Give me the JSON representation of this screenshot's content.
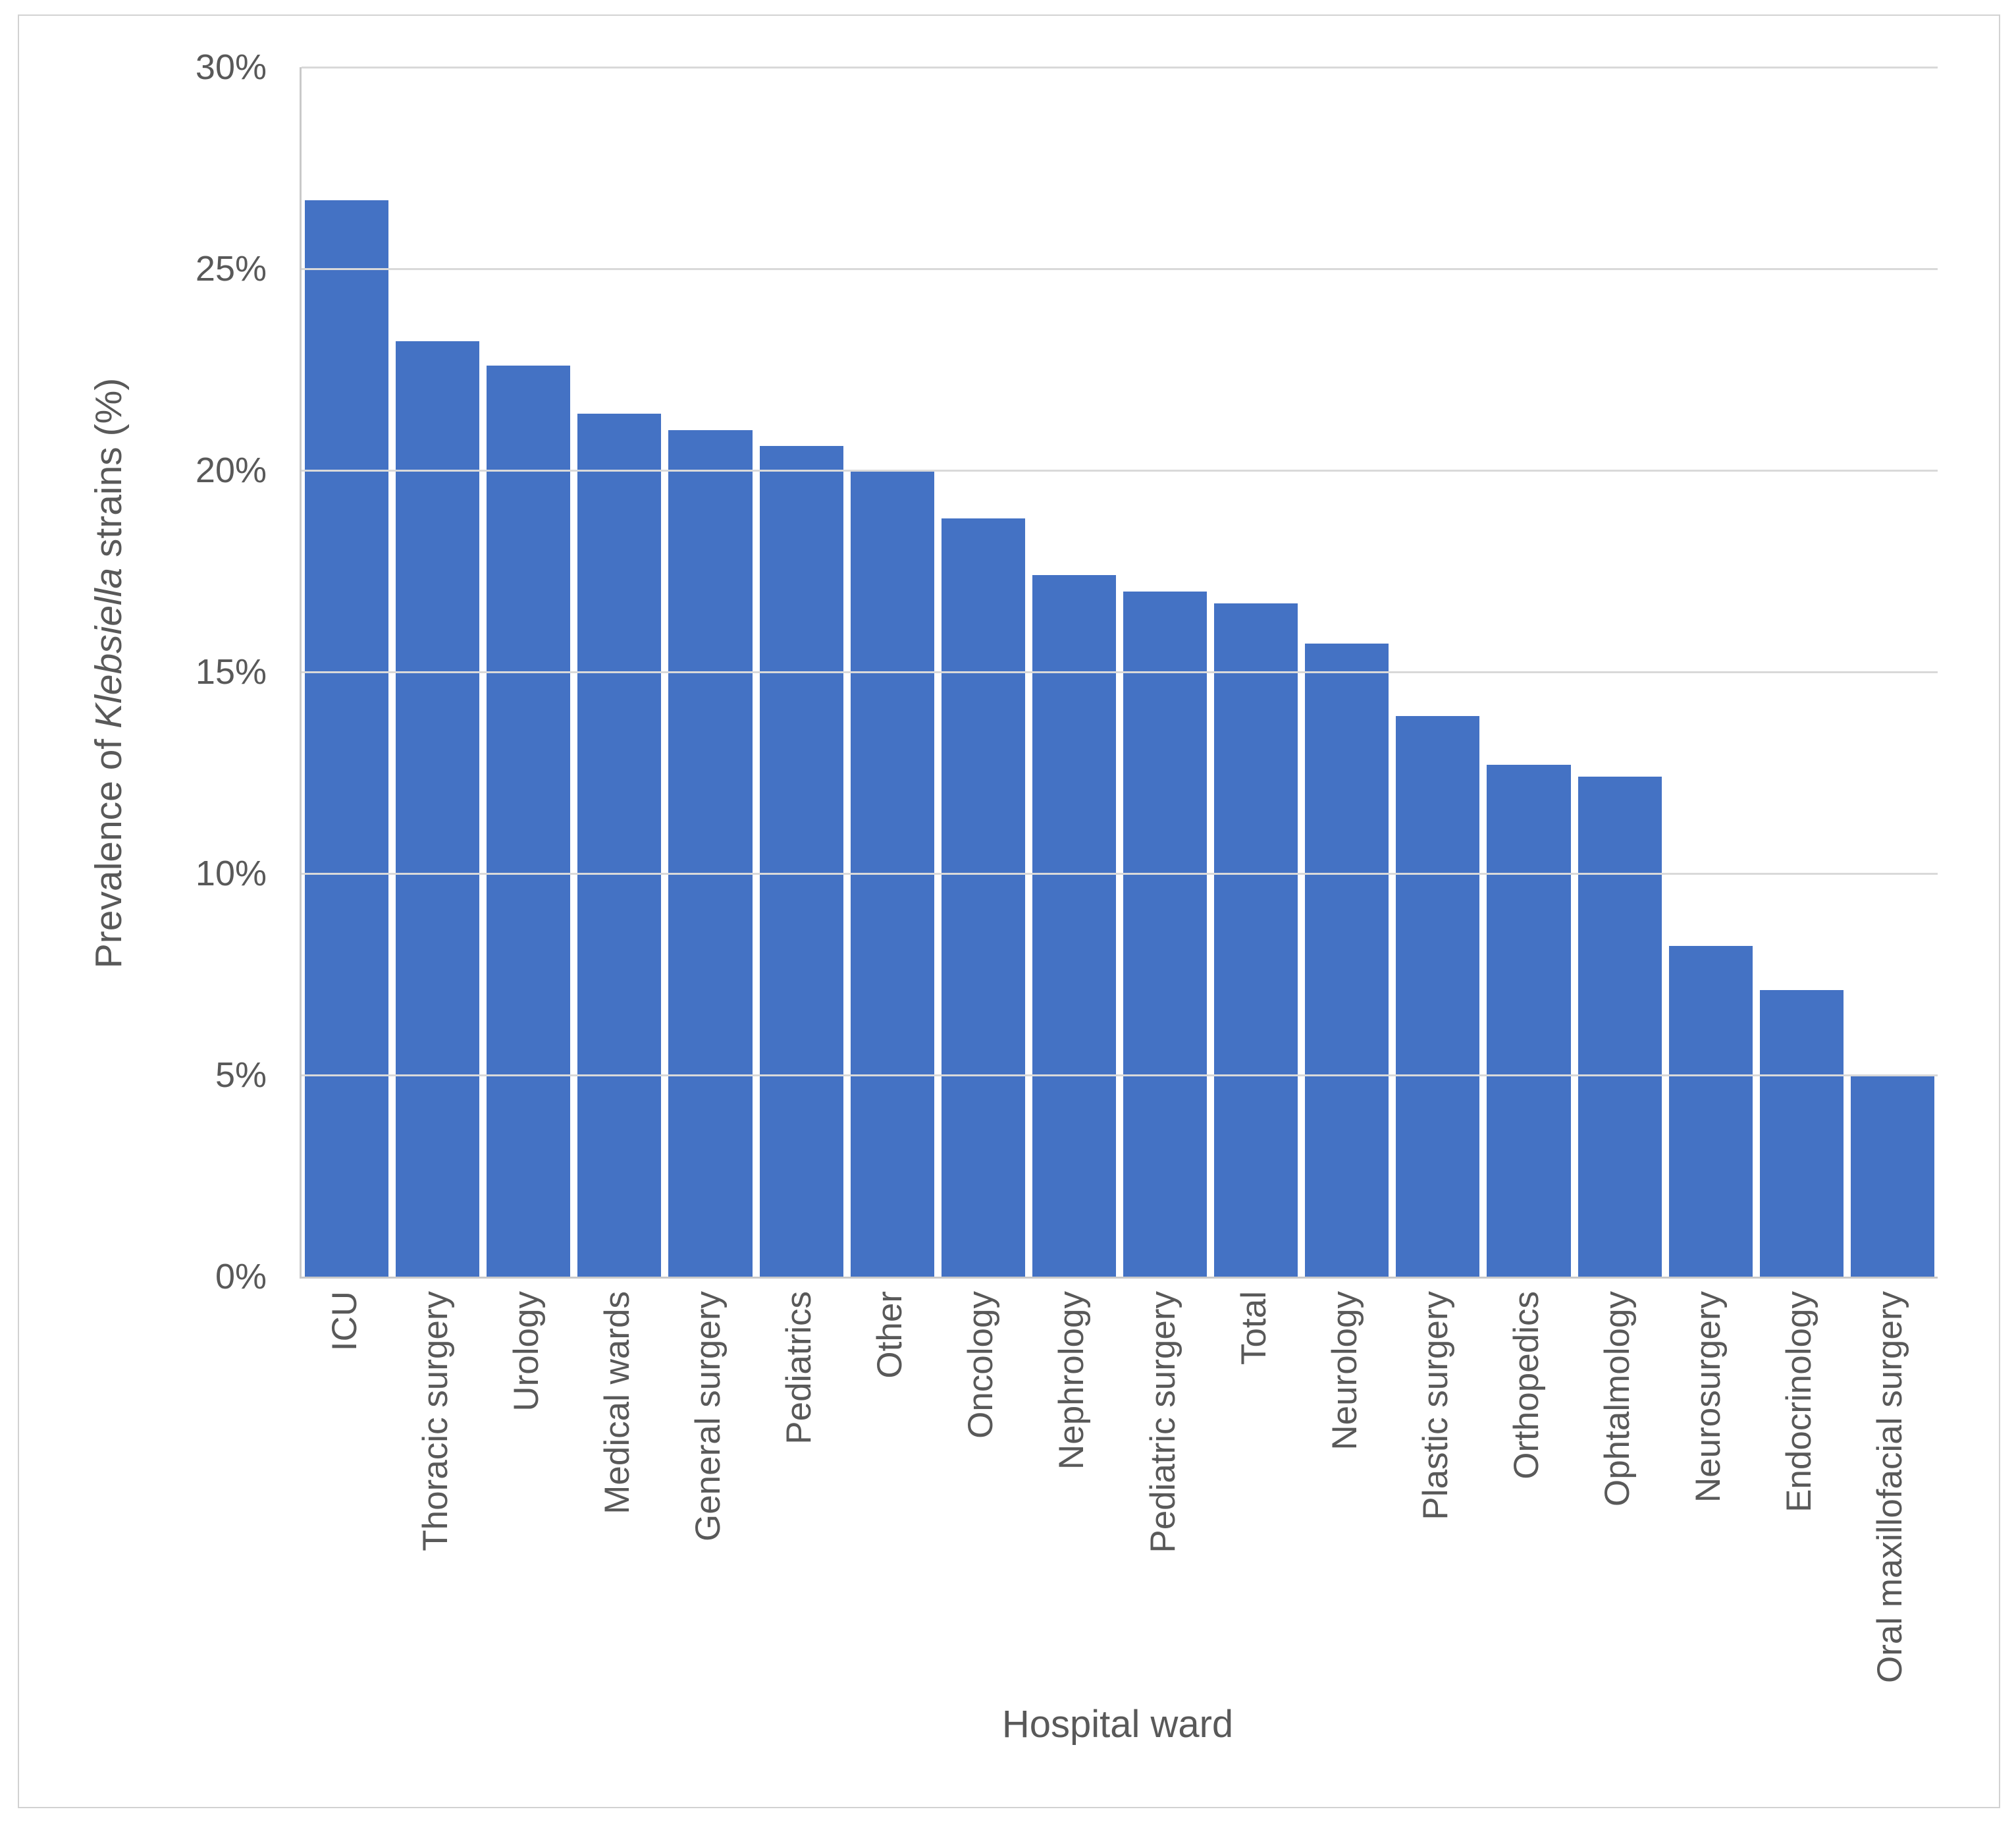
{
  "figure": {
    "y_axis_title": {
      "prefix": "Prevalence of ",
      "italic": "Klebsiella",
      "suffix": " strains (%)"
    },
    "x_axis_title": "Hospital ward"
  },
  "chart_data": {
    "type": "bar",
    "title": "",
    "xlabel": "Hospital ward",
    "ylabel": "Prevalence of Klebsiella strains (%)",
    "categories": [
      "ICU",
      "Thoracic surgery",
      "Urology",
      "Medical wards",
      "General surgery",
      "Pediatrics",
      "Other",
      "Oncology",
      "Nephrology",
      "Pediatric surgery",
      "Total",
      "Neurology",
      "Plastic surgery",
      "Orthopedics",
      "Ophtalmology",
      "Neurosurgery",
      "Endocrinology",
      "Oral maxillofacial surgery"
    ],
    "values": [
      26.7,
      23.2,
      22.6,
      21.4,
      21.0,
      20.6,
      20.0,
      18.8,
      17.4,
      17.0,
      16.7,
      15.7,
      13.9,
      12.7,
      12.4,
      8.2,
      7.1,
      5.0
    ],
    "ylim": [
      0,
      30
    ],
    "ytick_step": 5,
    "ytick_labels": [
      "0%",
      "5%",
      "10%",
      "15%",
      "20%",
      "25%",
      "30%"
    ],
    "grid": true,
    "legend": false,
    "colors": {
      "bar": "#4472C4",
      "gridline": "#d9d9d9",
      "axis_line": "#c9c9c9",
      "text": "#595959",
      "background": "#ffffff",
      "figure_border": "#d2d2d2"
    }
  }
}
